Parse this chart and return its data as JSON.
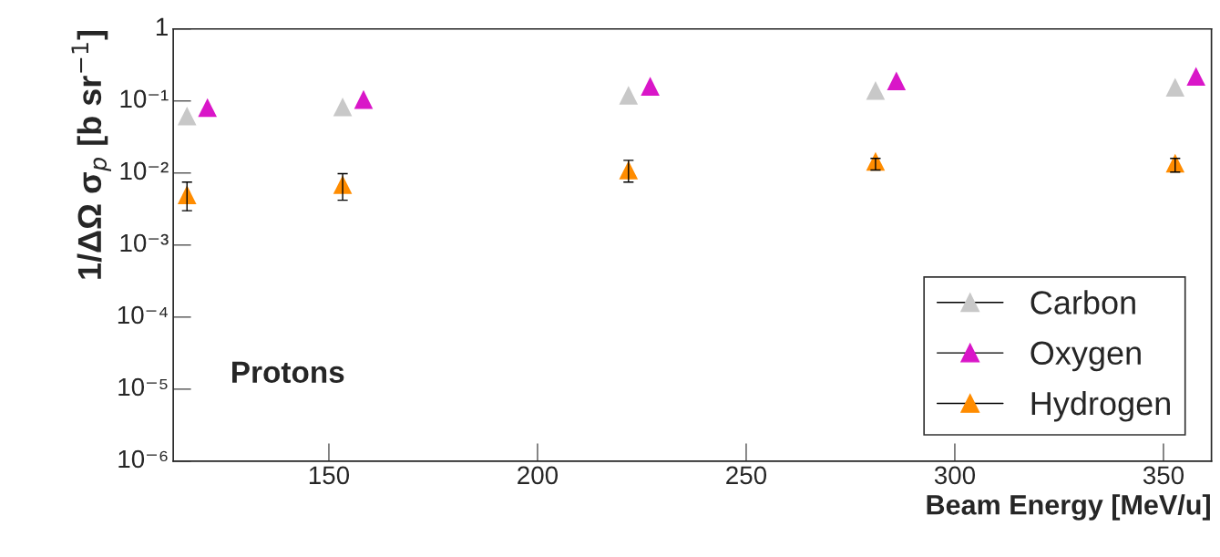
{
  "chart_data": {
    "type": "scatter",
    "xlabel": "Beam Energy [MeV/u]",
    "ylabel": "1/ΔΩ σ$_{p}$ [b sr$^{−1}$]",
    "annotations": [
      "Protons"
    ],
    "series": [
      {
        "name": "Carbon",
        "color": "#c8c8c8",
        "x": [
          116,
          153.3,
          221.8,
          281,
          352.8
        ],
        "values": [
          0.062,
          0.083,
          0.12,
          0.14,
          0.155
        ]
      },
      {
        "name": "Oxygen",
        "color": "#d916c8",
        "x": [
          120.9,
          158.3,
          227,
          286,
          357.8
        ],
        "values": [
          0.081,
          0.105,
          0.16,
          0.19,
          0.22
        ]
      },
      {
        "name": "Hydrogen",
        "color": "#ff8c00",
        "x": [
          116,
          153.3,
          221.8,
          281,
          352.8
        ],
        "values": [
          0.005,
          0.0069,
          0.011,
          0.0145,
          0.0137
        ],
        "errors": [
          [
            0.003,
            0.0075
          ],
          [
            0.0042,
            0.0098
          ],
          [
            0.0075,
            0.015
          ],
          [
            0.011,
            0.016
          ],
          [
            0.0103,
            0.016
          ]
        ]
      }
    ],
    "log": "y",
    "xlim": [
      112.7,
      361.5
    ],
    "xticks": [
      150,
      200,
      250,
      300,
      350
    ],
    "ylim": [
      1e-06,
      1
    ],
    "yticks": [
      {
        "value": 1e-06,
        "label": "10⁻⁶"
      },
      {
        "value": 1e-05,
        "label": "10⁻⁵"
      },
      {
        "value": 0.0001,
        "label": "10⁻⁴"
      },
      {
        "value": 0.001,
        "label": "10⁻³"
      },
      {
        "value": 0.01,
        "label": "10⁻²"
      },
      {
        "value": 0.1,
        "label": "10⁻¹"
      },
      1
    ],
    "marker": "triangle",
    "grid": false,
    "legend": "bottom right"
  }
}
